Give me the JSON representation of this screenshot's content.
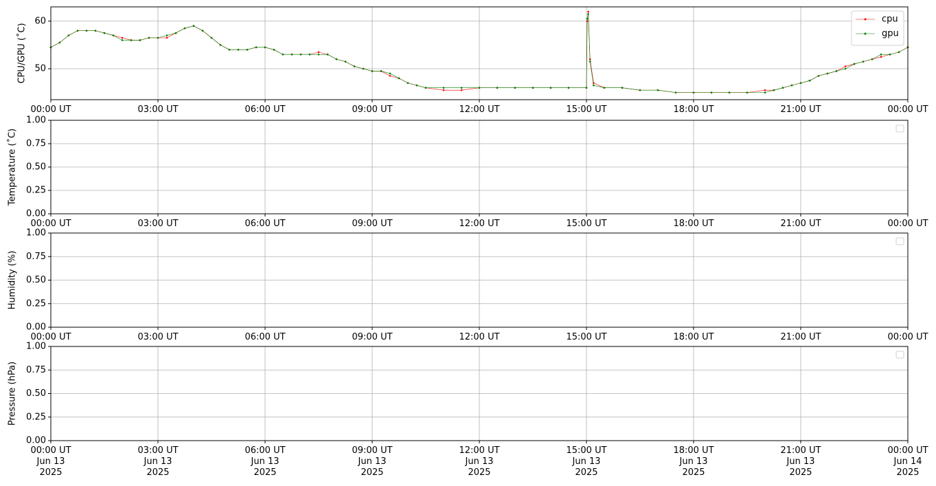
{
  "chart_data": [
    {
      "type": "line",
      "ylabel": "CPU/GPU (˚C)",
      "x": [
        0,
        0.25,
        0.5,
        0.75,
        1,
        1.25,
        1.5,
        1.75,
        2,
        2.25,
        2.5,
        2.75,
        3,
        3.25,
        3.5,
        3.75,
        4,
        4.25,
        4.5,
        4.75,
        5,
        5.25,
        5.5,
        5.75,
        6,
        6.25,
        6.5,
        6.75,
        7,
        7.25,
        7.5,
        7.75,
        8,
        8.25,
        8.5,
        8.75,
        9,
        9.25,
        9.5,
        9.75,
        10,
        10.25,
        10.5,
        11,
        11.5,
        12,
        12.5,
        13,
        13.5,
        14,
        14.5,
        15,
        15.02,
        15.05,
        15.1,
        15.2,
        15.5,
        16,
        16.5,
        17,
        17.5,
        18,
        18.5,
        19,
        19.5,
        20,
        20.25,
        20.5,
        20.75,
        21,
        21.25,
        21.5,
        21.75,
        22,
        22.25,
        22.5,
        22.75,
        23,
        23.25,
        23.5,
        23.75,
        24
      ],
      "series": [
        {
          "name": "cpu",
          "color": "#ff0000",
          "values": [
            54.5,
            55.5,
            57,
            58,
            58,
            58,
            57.5,
            57,
            56.5,
            56,
            56,
            56.5,
            56.5,
            56.5,
            57.5,
            58.5,
            59,
            58,
            56.5,
            55,
            54,
            54,
            54,
            54.5,
            54.5,
            54,
            53,
            53,
            53,
            53,
            53.5,
            53,
            52,
            51.5,
            50.5,
            50,
            49.5,
            49.5,
            48.5,
            48,
            47,
            46.5,
            46,
            45.5,
            45.5,
            46,
            46,
            46,
            46,
            46,
            46,
            46,
            60,
            62,
            52,
            47,
            46,
            46,
            45.5,
            45.5,
            45,
            45,
            45,
            45,
            45,
            45.5,
            45.5,
            46,
            46.5,
            47,
            47.5,
            48.5,
            49,
            49.5,
            50.5,
            51,
            51.5,
            52,
            52.5,
            53,
            53.5,
            54.5
          ]
        },
        {
          "name": "gpu",
          "color": "#008000",
          "values": [
            54.5,
            55.5,
            57,
            58,
            58,
            58,
            57.5,
            57,
            56,
            56,
            56,
            56.5,
            56.5,
            57,
            57.5,
            58.5,
            59,
            58,
            56.5,
            55,
            54,
            54,
            54,
            54.5,
            54.5,
            54,
            53,
            53,
            53,
            53,
            53,
            53,
            52,
            51.5,
            50.5,
            50,
            49.5,
            49.5,
            49,
            48,
            47,
            46.5,
            46,
            46,
            46,
            46,
            46,
            46,
            46,
            46,
            46,
            46,
            60.5,
            61.5,
            51.5,
            46.5,
            46,
            46,
            45.5,
            45.5,
            45,
            45,
            45,
            45,
            45,
            45,
            45.5,
            46,
            46.5,
            47,
            47.5,
            48.5,
            49,
            49.5,
            50,
            51,
            51.5,
            52,
            53,
            53,
            53.5,
            54.5
          ]
        }
      ],
      "xlim": [
        0,
        24
      ],
      "ylim": [
        43.5,
        63
      ],
      "yticks": [
        50,
        60
      ],
      "xticks": [
        {
          "value": 0,
          "label": "00:00 UT"
        },
        {
          "value": 3,
          "label": "03:00 UT"
        },
        {
          "value": 6,
          "label": "06:00 UT"
        },
        {
          "value": 9,
          "label": "09:00 UT"
        },
        {
          "value": 12,
          "label": "12:00 UT"
        },
        {
          "value": 15,
          "label": "15:00 UT"
        },
        {
          "value": 18,
          "label": "18:00 UT"
        },
        {
          "value": 21,
          "label": "21:00 UT"
        },
        {
          "value": 24,
          "label": "00:00 UT"
        }
      ],
      "grid": true,
      "legend": "upper right"
    },
    {
      "type": "line",
      "ylabel": "Temperature (˚C)",
      "series": [],
      "xlim": [
        0,
        24
      ],
      "ylim": [
        0,
        1
      ],
      "yticks": [
        {
          "value": 0,
          "label": "0.00"
        },
        {
          "value": 0.25,
          "label": "0.25"
        },
        {
          "value": 0.5,
          "label": "0.50"
        },
        {
          "value": 0.75,
          "label": "0.75"
        },
        {
          "value": 1,
          "label": "1.00"
        }
      ],
      "xticks": [
        {
          "value": 0,
          "label": "00:00 UT"
        },
        {
          "value": 3,
          "label": "03:00 UT"
        },
        {
          "value": 6,
          "label": "06:00 UT"
        },
        {
          "value": 9,
          "label": "09:00 UT"
        },
        {
          "value": 12,
          "label": "12:00 UT"
        },
        {
          "value": 15,
          "label": "15:00 UT"
        },
        {
          "value": 18,
          "label": "18:00 UT"
        },
        {
          "value": 21,
          "label": "21:00 UT"
        },
        {
          "value": 24,
          "label": "00:00 UT"
        }
      ],
      "grid": true,
      "legend": "upper right"
    },
    {
      "type": "line",
      "ylabel": "Humidity (%)",
      "series": [],
      "xlim": [
        0,
        24
      ],
      "ylim": [
        0,
        1
      ],
      "yticks": [
        {
          "value": 0,
          "label": "0.00"
        },
        {
          "value": 0.25,
          "label": "0.25"
        },
        {
          "value": 0.5,
          "label": "0.50"
        },
        {
          "value": 0.75,
          "label": "0.75"
        },
        {
          "value": 1,
          "label": "1.00"
        }
      ],
      "xticks": [
        {
          "value": 0,
          "label": "00:00 UT"
        },
        {
          "value": 3,
          "label": "03:00 UT"
        },
        {
          "value": 6,
          "label": "06:00 UT"
        },
        {
          "value": 9,
          "label": "09:00 UT"
        },
        {
          "value": 12,
          "label": "12:00 UT"
        },
        {
          "value": 15,
          "label": "15:00 UT"
        },
        {
          "value": 18,
          "label": "18:00 UT"
        },
        {
          "value": 21,
          "label": "21:00 UT"
        },
        {
          "value": 24,
          "label": "00:00 UT"
        }
      ],
      "grid": true,
      "legend": "upper right"
    },
    {
      "type": "line",
      "ylabel": "Pressure (hPa)",
      "series": [],
      "xlim": [
        0,
        24
      ],
      "ylim": [
        0,
        1
      ],
      "yticks": [
        {
          "value": 0,
          "label": "0.00"
        },
        {
          "value": 0.25,
          "label": "0.25"
        },
        {
          "value": 0.5,
          "label": "0.50"
        },
        {
          "value": 0.75,
          "label": "0.75"
        },
        {
          "value": 1,
          "label": "1.00"
        }
      ],
      "xticks": [
        {
          "value": 0,
          "label": "00:00 UT\nJun 13\n2025"
        },
        {
          "value": 3,
          "label": "03:00 UT\nJun 13\n2025"
        },
        {
          "value": 6,
          "label": "06:00 UT\nJun 13\n2025"
        },
        {
          "value": 9,
          "label": "09:00 UT\nJun 13\n2025"
        },
        {
          "value": 12,
          "label": "12:00 UT\nJun 13\n2025"
        },
        {
          "value": 15,
          "label": "15:00 UT\nJun 13\n2025"
        },
        {
          "value": 18,
          "label": "18:00 UT\nJun 13\n2025"
        },
        {
          "value": 21,
          "label": "21:00 UT\nJun 13\n2025"
        },
        {
          "value": 24,
          "label": "00:00 UT\nJun 14\n2025"
        }
      ],
      "grid": true,
      "legend": "upper right"
    }
  ]
}
